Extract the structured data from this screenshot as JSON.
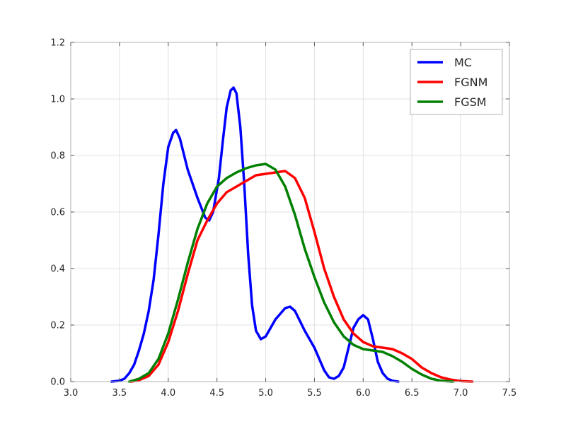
{
  "chart_data": {
    "type": "line",
    "title": "",
    "xlabel": "",
    "ylabel": "",
    "xlim": [
      3.0,
      7.5
    ],
    "ylim": [
      0.0,
      1.2
    ],
    "x_ticks": [
      3.0,
      3.5,
      4.0,
      4.5,
      5.0,
      5.5,
      6.0,
      6.5,
      7.0,
      7.5
    ],
    "x_tick_labels": [
      "3.0",
      "3.5",
      "4.0",
      "4.5",
      "5.0",
      "5.5",
      "6.0",
      "6.5",
      "7.0",
      "7.5"
    ],
    "y_ticks": [
      0.0,
      0.2,
      0.4,
      0.6,
      0.8,
      1.0,
      1.2
    ],
    "y_tick_labels": [
      "0.0",
      "0.2",
      "0.4",
      "0.6",
      "0.8",
      "1.0",
      "1.2"
    ],
    "grid": true,
    "legend_position": "top-right",
    "series": [
      {
        "name": "MC",
        "color": "#0000ff",
        "points": [
          [
            3.42,
            0.0
          ],
          [
            3.5,
            0.003
          ],
          [
            3.55,
            0.01
          ],
          [
            3.6,
            0.03
          ],
          [
            3.65,
            0.06
          ],
          [
            3.7,
            0.11
          ],
          [
            3.75,
            0.17
          ],
          [
            3.8,
            0.25
          ],
          [
            3.85,
            0.36
          ],
          [
            3.9,
            0.52
          ],
          [
            3.95,
            0.7
          ],
          [
            4.0,
            0.83
          ],
          [
            4.05,
            0.88
          ],
          [
            4.08,
            0.89
          ],
          [
            4.12,
            0.86
          ],
          [
            4.2,
            0.75
          ],
          [
            4.3,
            0.65
          ],
          [
            4.38,
            0.58
          ],
          [
            4.42,
            0.57
          ],
          [
            4.46,
            0.6
          ],
          [
            4.52,
            0.72
          ],
          [
            4.56,
            0.85
          ],
          [
            4.6,
            0.97
          ],
          [
            4.64,
            1.03
          ],
          [
            4.67,
            1.04
          ],
          [
            4.7,
            1.02
          ],
          [
            4.74,
            0.9
          ],
          [
            4.78,
            0.7
          ],
          [
            4.82,
            0.45
          ],
          [
            4.86,
            0.27
          ],
          [
            4.9,
            0.18
          ],
          [
            4.95,
            0.15
          ],
          [
            5.0,
            0.16
          ],
          [
            5.1,
            0.22
          ],
          [
            5.2,
            0.26
          ],
          [
            5.25,
            0.265
          ],
          [
            5.3,
            0.25
          ],
          [
            5.4,
            0.18
          ],
          [
            5.5,
            0.12
          ],
          [
            5.55,
            0.08
          ],
          [
            5.6,
            0.04
          ],
          [
            5.65,
            0.015
          ],
          [
            5.7,
            0.01
          ],
          [
            5.75,
            0.02
          ],
          [
            5.8,
            0.05
          ],
          [
            5.85,
            0.12
          ],
          [
            5.9,
            0.19
          ],
          [
            5.95,
            0.22
          ],
          [
            6.0,
            0.235
          ],
          [
            6.05,
            0.22
          ],
          [
            6.1,
            0.15
          ],
          [
            6.15,
            0.07
          ],
          [
            6.2,
            0.03
          ],
          [
            6.25,
            0.01
          ],
          [
            6.3,
            0.003
          ],
          [
            6.36,
            0.0
          ]
        ]
      },
      {
        "name": "FGNM",
        "color": "#ff0000",
        "points": [
          [
            3.62,
            0.0
          ],
          [
            3.7,
            0.005
          ],
          [
            3.8,
            0.02
          ],
          [
            3.9,
            0.06
          ],
          [
            4.0,
            0.14
          ],
          [
            4.1,
            0.25
          ],
          [
            4.2,
            0.38
          ],
          [
            4.3,
            0.5
          ],
          [
            4.4,
            0.57
          ],
          [
            4.5,
            0.63
          ],
          [
            4.6,
            0.67
          ],
          [
            4.7,
            0.69
          ],
          [
            4.8,
            0.71
          ],
          [
            4.9,
            0.73
          ],
          [
            5.0,
            0.735
          ],
          [
            5.1,
            0.74
          ],
          [
            5.2,
            0.745
          ],
          [
            5.3,
            0.72
          ],
          [
            5.4,
            0.65
          ],
          [
            5.5,
            0.53
          ],
          [
            5.6,
            0.4
          ],
          [
            5.7,
            0.3
          ],
          [
            5.8,
            0.22
          ],
          [
            5.9,
            0.17
          ],
          [
            6.0,
            0.14
          ],
          [
            6.1,
            0.125
          ],
          [
            6.2,
            0.12
          ],
          [
            6.3,
            0.115
          ],
          [
            6.4,
            0.1
          ],
          [
            6.5,
            0.08
          ],
          [
            6.6,
            0.05
          ],
          [
            6.7,
            0.03
          ],
          [
            6.8,
            0.015
          ],
          [
            6.9,
            0.007
          ],
          [
            7.0,
            0.002
          ],
          [
            7.12,
            0.0
          ]
        ]
      },
      {
        "name": "FGSM",
        "color": "#008000",
        "points": [
          [
            3.6,
            0.0
          ],
          [
            3.7,
            0.01
          ],
          [
            3.8,
            0.03
          ],
          [
            3.9,
            0.08
          ],
          [
            4.0,
            0.17
          ],
          [
            4.1,
            0.29
          ],
          [
            4.2,
            0.42
          ],
          [
            4.3,
            0.54
          ],
          [
            4.4,
            0.63
          ],
          [
            4.5,
            0.69
          ],
          [
            4.6,
            0.72
          ],
          [
            4.7,
            0.74
          ],
          [
            4.8,
            0.755
          ],
          [
            4.9,
            0.765
          ],
          [
            5.0,
            0.77
          ],
          [
            5.1,
            0.75
          ],
          [
            5.2,
            0.69
          ],
          [
            5.3,
            0.59
          ],
          [
            5.4,
            0.47
          ],
          [
            5.5,
            0.37
          ],
          [
            5.6,
            0.28
          ],
          [
            5.7,
            0.21
          ],
          [
            5.8,
            0.16
          ],
          [
            5.9,
            0.13
          ],
          [
            6.0,
            0.115
          ],
          [
            6.1,
            0.11
          ],
          [
            6.2,
            0.105
          ],
          [
            6.3,
            0.09
          ],
          [
            6.4,
            0.07
          ],
          [
            6.5,
            0.045
          ],
          [
            6.6,
            0.025
          ],
          [
            6.7,
            0.01
          ],
          [
            6.8,
            0.003
          ],
          [
            6.92,
            0.0
          ]
        ]
      }
    ]
  }
}
